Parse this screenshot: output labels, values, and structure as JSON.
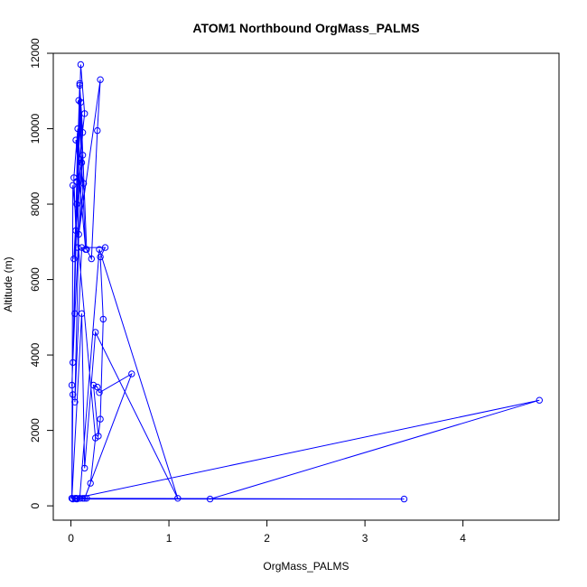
{
  "chart_data": {
    "type": "line",
    "title": "ATOM1 Northbound OrgMass_PALMS",
    "xlabel": "OrgMass_PALMS",
    "ylabel": "Altitude (m)",
    "xlim": [
      -0.18,
      4.98
    ],
    "ylim": [
      -380,
      12000
    ],
    "x_ticks": [
      0,
      1,
      2,
      3,
      4
    ],
    "y_ticks": [
      0,
      2000,
      4000,
      6000,
      8000,
      10000,
      12000
    ],
    "grid": false,
    "legend": "none",
    "color": "#0000ff",
    "marker": "open-circle",
    "series": [
      {
        "x": [
          0.01,
          0.02,
          0.01,
          0.04,
          0.12,
          0.05,
          0.03,
          0.07,
          0.02,
          0.1,
          0.14,
          0.06,
          0.09,
          0.11,
          0.08,
          0.15,
          0.05,
          0.13,
          0.07,
          0.09,
          0.12,
          0.03,
          0.06,
          0.1,
          0.16,
          0.21,
          0.27,
          0.3,
          0.08,
          0.04,
          0.11,
          0.35,
          0.3,
          0.33,
          0.3,
          0.28,
          0.23,
          0.27,
          0.29,
          0.62,
          0.14,
          0.2,
          0.25,
          0.02,
          0.01,
          0.11,
          0.14,
          0.25,
          1.09,
          0.29,
          0.09,
          3.4,
          0.06,
          0.05,
          1.42,
          4.78,
          0.04,
          0.12,
          0.01,
          0.02,
          0.06,
          0.16,
          0.09
        ],
        "y": [
          200,
          2950,
          3200,
          5100,
          9300,
          7300,
          8700,
          10000,
          3800,
          11700,
          10400,
          8600,
          11200,
          9100,
          10750,
          6800,
          9700,
          8550,
          6850,
          11150,
          9900,
          6550,
          8000,
          10700,
          6800,
          6550,
          9950,
          11300,
          7200,
          2750,
          6850,
          6850,
          6600,
          4950,
          2300,
          1850,
          3200,
          3150,
          3000,
          3500,
          200,
          600,
          1800,
          8500,
          200,
          5100,
          1000,
          4600,
          200,
          6800,
          200,
          180,
          180,
          200,
          180,
          2800,
          200,
          200,
          200,
          180,
          200,
          200,
          200
        ]
      }
    ]
  }
}
